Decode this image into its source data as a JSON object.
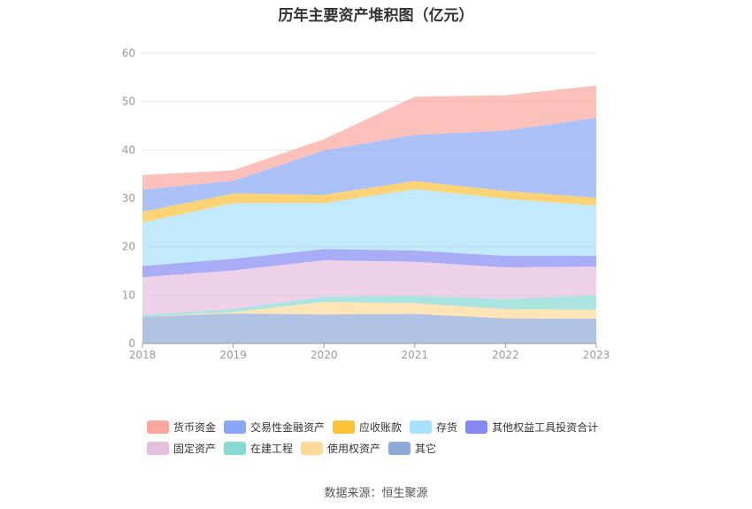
{
  "chart_data": {
    "type": "area",
    "stacked": true,
    "title": "历年主要资产堆积图（亿元）",
    "x": [
      "2018",
      "2019",
      "2020",
      "2021",
      "2022",
      "2023"
    ],
    "ylim": [
      0,
      60
    ],
    "yticks": [
      "0",
      "10",
      "20",
      "30",
      "40",
      "50",
      "60"
    ],
    "grid": true,
    "legend_position": "bottom",
    "series": [
      {
        "name": "其它",
        "color": "#8fa9d9",
        "values": [
          5.5,
          6.2,
          6.0,
          6.1,
          5.2,
          5.1
        ]
      },
      {
        "name": "使用权资产",
        "color": "#ffd99a",
        "values": [
          0.0,
          0.3,
          2.6,
          2.2,
          1.9,
          1.9
        ]
      },
      {
        "name": "在建工程",
        "color": "#88d8d4",
        "values": [
          0.4,
          0.6,
          1.1,
          1.6,
          2.1,
          3.0
        ]
      },
      {
        "name": "固定资产",
        "color": "#e6bfdf",
        "values": [
          7.8,
          8.0,
          7.5,
          7.0,
          6.5,
          5.9
        ]
      },
      {
        "name": "其他权益工具投资合计",
        "color": "#8589f2",
        "values": [
          2.3,
          2.4,
          2.3,
          2.3,
          2.4,
          2.2
        ]
      },
      {
        "name": "存货",
        "color": "#a8e1fb",
        "values": [
          9.0,
          11.5,
          9.5,
          12.7,
          11.8,
          10.4
        ]
      },
      {
        "name": "应收账款",
        "color": "#fbc23c",
        "values": [
          2.2,
          2.0,
          1.7,
          1.7,
          1.6,
          1.6
        ]
      },
      {
        "name": "交易性金融资产",
        "color": "#8aa6f7",
        "values": [
          4.6,
          2.6,
          9.2,
          9.5,
          12.5,
          16.5
        ]
      },
      {
        "name": "货币资金",
        "color": "#fba69e",
        "values": [
          3.0,
          2.2,
          2.3,
          7.9,
          7.3,
          6.7
        ]
      }
    ]
  },
  "legend_order": [
    "货币资金",
    "交易性金融资产",
    "应收账款",
    "存货",
    "其他权益工具投资合计",
    "固定资产",
    "在建工程",
    "使用权资产",
    "其它"
  ],
  "source": "数据来源：恒生聚源"
}
